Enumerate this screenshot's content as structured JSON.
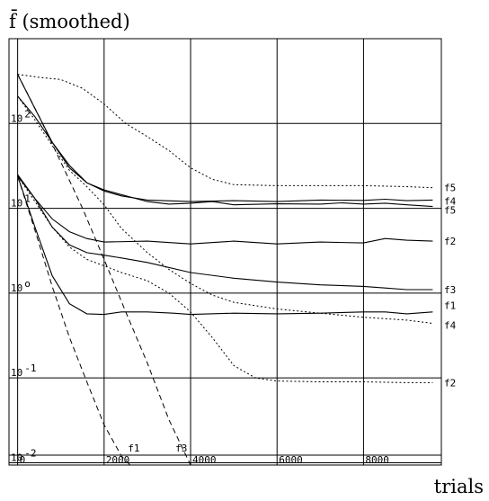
{
  "chart_data": {
    "type": "line",
    "title": "f̄ (smoothed)",
    "xlabel": "trials",
    "ylabel": "",
    "xlim": [
      -200,
      9800
    ],
    "ylim": [
      0.0094,
      1000
    ],
    "yscale": "log",
    "grid": true,
    "x_ticks": [
      0,
      2000,
      4000,
      6000,
      8000
    ],
    "x_tick_labels": [
      "0",
      "2000",
      "4000",
      "6000",
      "8000"
    ],
    "y_ticks": [
      0.01,
      0.1,
      1,
      10,
      100
    ],
    "y_tick_labels": [
      {
        "base": "10",
        "exp": "-2"
      },
      {
        "base": "10",
        "exp": "-1"
      },
      {
        "base": "10",
        "exp": "o"
      },
      {
        "base": "10",
        "exp": "1"
      },
      {
        "base": "10",
        "exp": "2"
      }
    ],
    "series": [
      {
        "name": "f1",
        "style": "solid",
        "label_y": 0.72,
        "points": [
          [
            0,
            24
          ],
          [
            400,
            6
          ],
          [
            800,
            1.6
          ],
          [
            1200,
            0.75
          ],
          [
            1600,
            0.57
          ],
          [
            2000,
            0.56
          ],
          [
            2400,
            0.6
          ],
          [
            3000,
            0.6
          ],
          [
            3600,
            0.58
          ],
          [
            4000,
            0.56
          ],
          [
            5000,
            0.58
          ],
          [
            6000,
            0.57
          ],
          [
            7000,
            0.58
          ],
          [
            8000,
            0.6
          ],
          [
            8500,
            0.6
          ],
          [
            9000,
            0.57
          ],
          [
            9600,
            0.6
          ]
        ]
      },
      {
        "name": "f2",
        "style": "solid",
        "label_y": 4.1,
        "points": [
          [
            0,
            24
          ],
          [
            400,
            13
          ],
          [
            800,
            7.5
          ],
          [
            1200,
            5.3
          ],
          [
            1600,
            4.4
          ],
          [
            2000,
            4.0
          ],
          [
            3000,
            4.1
          ],
          [
            4000,
            3.8
          ],
          [
            5000,
            4.1
          ],
          [
            6000,
            3.8
          ],
          [
            7000,
            4.0
          ],
          [
            8000,
            3.9
          ],
          [
            8500,
            4.4
          ],
          [
            9000,
            4.2
          ],
          [
            9600,
            4.1
          ]
        ]
      },
      {
        "name": "f3",
        "style": "solid",
        "label_y": 1.1,
        "points": [
          [
            0,
            25
          ],
          [
            400,
            13
          ],
          [
            800,
            6
          ],
          [
            1200,
            3.7
          ],
          [
            1600,
            3.0
          ],
          [
            2000,
            2.8
          ],
          [
            2400,
            2.6
          ],
          [
            3000,
            2.3
          ],
          [
            4000,
            1.75
          ],
          [
            5000,
            1.5
          ],
          [
            6000,
            1.35
          ],
          [
            7000,
            1.25
          ],
          [
            8000,
            1.2
          ],
          [
            8500,
            1.15
          ],
          [
            9000,
            1.1
          ],
          [
            9600,
            1.1
          ]
        ]
      },
      {
        "name": "f4",
        "style": "solid",
        "label_y": 12.2,
        "points": [
          [
            0,
            210
          ],
          [
            400,
            120
          ],
          [
            800,
            60
          ],
          [
            1200,
            32
          ],
          [
            1600,
            20
          ],
          [
            2000,
            16
          ],
          [
            2400,
            14
          ],
          [
            3000,
            12.5
          ],
          [
            4000,
            12
          ],
          [
            5000,
            12.3
          ],
          [
            6000,
            12
          ],
          [
            7000,
            12.5
          ],
          [
            8000,
            12.4
          ],
          [
            8500,
            12.8
          ],
          [
            9000,
            12.3
          ],
          [
            9600,
            12.5
          ]
        ]
      },
      {
        "name": "f5",
        "style": "solid",
        "label_y": 9.6,
        "points": [
          [
            0,
            380
          ],
          [
            400,
            150
          ],
          [
            800,
            60
          ],
          [
            1200,
            30
          ],
          [
            1600,
            20
          ],
          [
            2000,
            16.5
          ],
          [
            2400,
            14.5
          ],
          [
            3000,
            12
          ],
          [
            3500,
            11.2
          ],
          [
            4000,
            11.5
          ],
          [
            4500,
            12
          ],
          [
            5000,
            11
          ],
          [
            6000,
            11.3
          ],
          [
            7000,
            11.2
          ],
          [
            7500,
            11.6
          ],
          [
            8000,
            11.2
          ],
          [
            8500,
            11.5
          ],
          [
            9000,
            11
          ],
          [
            9600,
            10.5
          ]
        ]
      },
      {
        "name": "f1",
        "style": "dashed",
        "label_y": 0.015,
        "label_x": 2550,
        "points": [
          [
            0,
            24
          ],
          [
            400,
            5.5
          ],
          [
            800,
            1.2
          ],
          [
            1200,
            0.3
          ],
          [
            1600,
            0.09
          ],
          [
            2000,
            0.028
          ],
          [
            2400,
            0.012
          ],
          [
            2600,
            0.0094
          ]
        ]
      },
      {
        "name": "f3",
        "style": "dashed",
        "label_y": 0.015,
        "label_x": 3650,
        "points": [
          [
            0,
            380
          ],
          [
            500,
            120
          ],
          [
            1000,
            35
          ],
          [
            1500,
            10
          ],
          [
            2000,
            2.5
          ],
          [
            2500,
            0.6
          ],
          [
            3000,
            0.15
          ],
          [
            3500,
            0.032
          ],
          [
            4000,
            0.0094
          ]
        ]
      },
      {
        "name": "f2",
        "style": "dotted",
        "label_y": 0.088,
        "points": [
          [
            0,
            24
          ],
          [
            400,
            12
          ],
          [
            800,
            6
          ],
          [
            1200,
            3.5
          ],
          [
            1600,
            2.5
          ],
          [
            2000,
            2.1
          ],
          [
            2400,
            1.75
          ],
          [
            3000,
            1.4
          ],
          [
            3500,
            1.0
          ],
          [
            4000,
            0.6
          ],
          [
            4500,
            0.3
          ],
          [
            5000,
            0.14
          ],
          [
            5500,
            0.1
          ],
          [
            6000,
            0.092
          ],
          [
            7000,
            0.09
          ],
          [
            8000,
            0.09
          ],
          [
            9000,
            0.088
          ],
          [
            9600,
            0.088
          ]
        ]
      },
      {
        "name": "f4",
        "style": "dotted",
        "label_y": 0.42,
        "points": [
          [
            0,
            210
          ],
          [
            400,
            110
          ],
          [
            800,
            55
          ],
          [
            1200,
            28
          ],
          [
            1600,
            18
          ],
          [
            2000,
            11
          ],
          [
            2400,
            5.8
          ],
          [
            3000,
            3.0
          ],
          [
            3500,
            1.9
          ],
          [
            4000,
            1.3
          ],
          [
            4500,
            0.95
          ],
          [
            5000,
            0.78
          ],
          [
            6000,
            0.65
          ],
          [
            7000,
            0.58
          ],
          [
            8000,
            0.52
          ],
          [
            9000,
            0.48
          ],
          [
            9600,
            0.44
          ]
        ]
      },
      {
        "name": "f5",
        "style": "dotted",
        "label_y": 17.5,
        "points": [
          [
            0,
            380
          ],
          [
            500,
            350
          ],
          [
            1000,
            330
          ],
          [
            1500,
            260
          ],
          [
            2000,
            170
          ],
          [
            2500,
            100
          ],
          [
            3000,
            70
          ],
          [
            3500,
            48
          ],
          [
            4000,
            30
          ],
          [
            4500,
            22
          ],
          [
            5000,
            19
          ],
          [
            6000,
            18.5
          ],
          [
            7000,
            18.5
          ],
          [
            8000,
            18.5
          ],
          [
            9000,
            18
          ],
          [
            9600,
            17.5
          ]
        ]
      }
    ]
  }
}
